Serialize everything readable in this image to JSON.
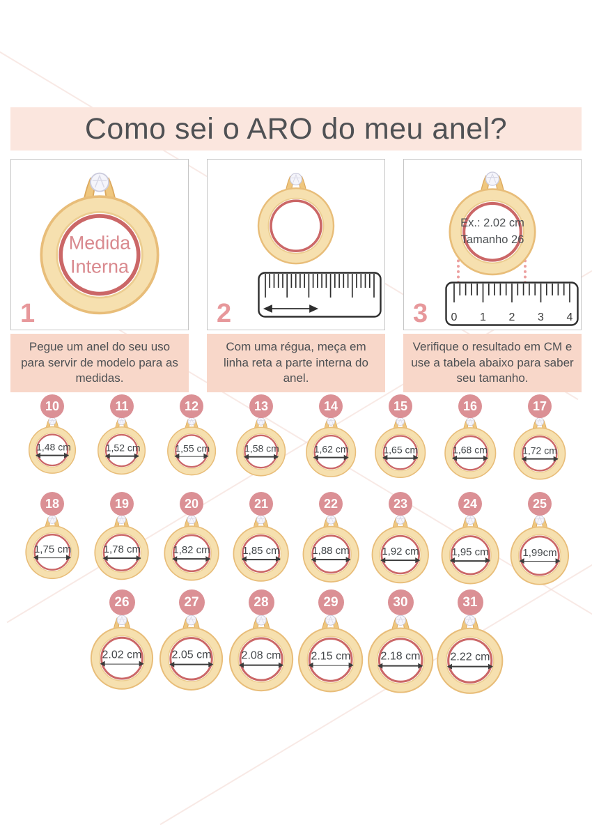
{
  "title": "Como sei o ARO do meu anel?",
  "steps": [
    {
      "number": "1",
      "ring_text_lines": [
        "Medida",
        "Interna"
      ],
      "caption": "Pegue um anel do seu uso para servir de modelo para as medidas."
    },
    {
      "number": "2",
      "caption": "Com uma régua, meça em linha reta a parte interna do anel."
    },
    {
      "number": "3",
      "example_lines": [
        "Ex.: 2.02 cm",
        "Tamanho 26"
      ],
      "ruler_labels": [
        "0",
        "1",
        "2",
        "3",
        "4"
      ],
      "caption": "Verifique o resultado em CM e use a tabela abaixo para saber seu tamanho."
    }
  ],
  "size_chart": {
    "rows": [
      {
        "items": [
          {
            "size": "10",
            "measurement": "1,48 cm"
          },
          {
            "size": "11",
            "measurement": "1,52 cm"
          },
          {
            "size": "12",
            "measurement": "1,55 cm"
          },
          {
            "size": "13",
            "measurement": "1,58 cm"
          },
          {
            "size": "14",
            "measurement": "1,62 cm"
          },
          {
            "size": "15",
            "measurement": "1,65 cm"
          },
          {
            "size": "16",
            "measurement": "1,68 cm"
          },
          {
            "size": "17",
            "measurement": "1,72 cm"
          }
        ]
      },
      {
        "items": [
          {
            "size": "18",
            "measurement": "1,75 cm"
          },
          {
            "size": "19",
            "measurement": "1,78 cm"
          },
          {
            "size": "20",
            "measurement": "1,82 cm"
          },
          {
            "size": "21",
            "measurement": "1,85 cm"
          },
          {
            "size": "22",
            "measurement": "1,88 cm"
          },
          {
            "size": "23",
            "measurement": "1,92 cm"
          },
          {
            "size": "24",
            "measurement": "1,95 cm"
          },
          {
            "size": "25",
            "measurement": "1,99cm"
          }
        ]
      },
      {
        "items": [
          {
            "size": "26",
            "measurement": "2.02 cm"
          },
          {
            "size": "27",
            "measurement": "2.05 cm"
          },
          {
            "size": "28",
            "measurement": "2.08 cm"
          },
          {
            "size": "29",
            "measurement": "2.15 cm"
          },
          {
            "size": "30",
            "measurement": "2.18 cm"
          },
          {
            "size": "31",
            "measurement": "2.22 cm"
          }
        ]
      }
    ]
  },
  "colors": {
    "header_bg": "#fbe6de",
    "caption_bg": "#f8d7c9",
    "badge_pink": "#db9095",
    "ring_red": "#cb6767",
    "ring_gold": "#f6e0af",
    "step_number_pink": "#e7989b",
    "text_dark": "#4d5053"
  }
}
